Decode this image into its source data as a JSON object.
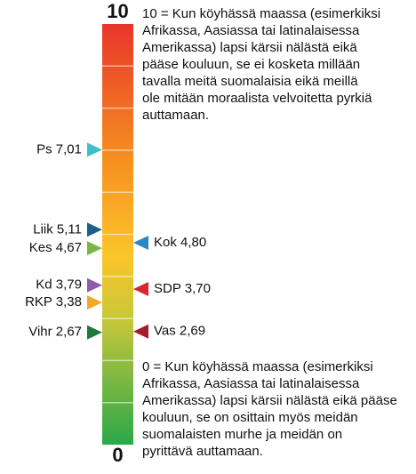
{
  "chart_data": {
    "type": "scale",
    "ylim": [
      0,
      10
    ],
    "yticks": [
      0,
      10
    ],
    "minor_yticks": [
      1,
      2,
      3,
      4,
      5,
      6,
      7,
      8,
      9
    ],
    "top_note": [
      "10 = Kun köyhässä maassa (esimerkiksi",
      "Afrikassa, Aasiassa tai latinalaisessa",
      "Amerikassa) lapsi kärsii nälästä eikä",
      "pääse kouluun, se ei kosketa millään",
      "tavalla meitä suomalaisia eikä meillä",
      "ole mitään moraalista velvoitetta pyrkiä",
      "auttamaan."
    ],
    "bottom_note": [
      "0 = Kun köyhässä maassa (esimerkiksi",
      "Afrikassa, Aasiassa tai latinalaisessa",
      "Amerikassa) lapsi kärsii nälästä eikä pääse",
      "kouluun, se on osittain myös meidän",
      "suomalaisten murhe ja meidän on",
      "pyrittävä auttamaan."
    ],
    "markers": [
      {
        "label": "Ps 7,01",
        "value": 7.01,
        "color": "#3cbfc9",
        "side": "left"
      },
      {
        "label": "Liik 5,11",
        "value": 5.11,
        "color": "#1f5f8b",
        "side": "left"
      },
      {
        "label": "Kes 4,67",
        "value": 4.67,
        "color": "#7ab648",
        "side": "left"
      },
      {
        "label": "Kd 3,79",
        "value": 3.79,
        "color": "#8e5ca8",
        "side": "left"
      },
      {
        "label": "RKP 3,38",
        "value": 3.38,
        "color": "#f5a623",
        "side": "left"
      },
      {
        "label": "Vihr 2,67",
        "value": 2.67,
        "color": "#1e7a3c",
        "side": "left"
      },
      {
        "label": "Kok 4,80",
        "value": 4.8,
        "color": "#2a88c8",
        "side": "right"
      },
      {
        "label": "SDP 3,70",
        "value": 3.7,
        "color": "#d9262e",
        "side": "right"
      },
      {
        "label": "Vas 2,69",
        "value": 2.69,
        "color": "#a51c2a",
        "side": "right"
      }
    ]
  }
}
